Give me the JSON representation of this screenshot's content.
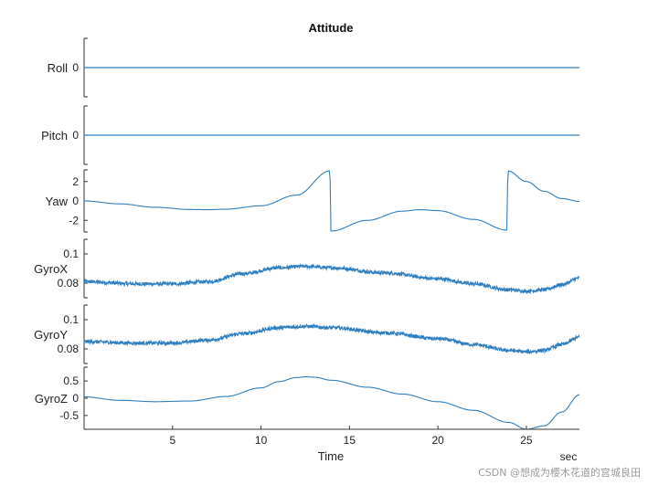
{
  "chart_data": {
    "type": "line",
    "title": "Attitude",
    "xlabel": "Time",
    "xunit": "sec",
    "xlim": [
      0,
      28
    ],
    "xticks": [
      5,
      10,
      15,
      20,
      25
    ],
    "colors": {
      "line": "#2f7fc0",
      "axis": "#333333"
    },
    "panels": [
      {
        "name": "Roll",
        "ylim": [
          -1,
          1
        ],
        "yticks": [
          0
        ],
        "kind": "const",
        "value": 0
      },
      {
        "name": "Pitch",
        "ylim": [
          -1,
          1
        ],
        "yticks": [
          0
        ],
        "kind": "const",
        "value": 0
      },
      {
        "name": "Yaw",
        "ylim": [
          -3.2,
          3.2
        ],
        "yticks": [
          2,
          0,
          -2
        ],
        "kind": "curve",
        "x": [
          0,
          2,
          4,
          6,
          7,
          8,
          10,
          12,
          13.9,
          13.95,
          16,
          18,
          19,
          20,
          22,
          23.9,
          23.95,
          25,
          26,
          27,
          28
        ],
        "y": [
          0,
          -0.3,
          -0.65,
          -0.88,
          -0.9,
          -0.85,
          -0.5,
          0.6,
          3.1,
          -3.1,
          -2.0,
          -1.05,
          -0.9,
          -1.0,
          -1.9,
          -3.0,
          3.1,
          2.0,
          1.0,
          0.25,
          -0.05
        ]
      },
      {
        "name": "GyroX",
        "ylim": [
          0.07,
          0.11
        ],
        "yticks": [
          0.1,
          0.08
        ],
        "kind": "noisy",
        "noise": 0.0012,
        "x": [
          0,
          3,
          5,
          7,
          9,
          11,
          12.5,
          14,
          17,
          20,
          22,
          24,
          25,
          26,
          27,
          28
        ],
        "y": [
          0.081,
          0.0795,
          0.0795,
          0.081,
          0.0865,
          0.0905,
          0.0915,
          0.0905,
          0.087,
          0.083,
          0.0795,
          0.0755,
          0.0745,
          0.0755,
          0.079,
          0.0835
        ]
      },
      {
        "name": "GyroY",
        "ylim": [
          0.07,
          0.11
        ],
        "yticks": [
          0.1,
          0.08
        ],
        "kind": "noisy",
        "noise": 0.0012,
        "x": [
          0,
          3,
          5,
          7,
          9,
          11,
          12.5,
          14,
          17,
          20,
          22,
          24,
          25,
          26,
          27,
          28
        ],
        "y": [
          0.085,
          0.084,
          0.084,
          0.086,
          0.0905,
          0.0945,
          0.0955,
          0.0945,
          0.091,
          0.087,
          0.083,
          0.079,
          0.078,
          0.079,
          0.083,
          0.088
        ]
      },
      {
        "name": "GyroZ",
        "ylim": [
          -0.9,
          0.9
        ],
        "yticks": [
          0.5,
          0,
          -0.5
        ],
        "kind": "curve",
        "x": [
          0,
          2,
          4,
          6,
          8,
          10,
          11,
          12,
          12.5,
          13,
          14,
          16,
          18,
          20,
          22,
          24,
          25,
          26,
          27,
          28
        ],
        "y": [
          0.04,
          -0.06,
          -0.1,
          -0.08,
          0.05,
          0.3,
          0.48,
          0.6,
          0.62,
          0.61,
          0.52,
          0.32,
          0.12,
          -0.1,
          -0.35,
          -0.7,
          -0.9,
          -0.8,
          -0.4,
          0.1
        ]
      }
    ]
  },
  "watermark": "CSDN @想成为樱木花道的宫城良田"
}
